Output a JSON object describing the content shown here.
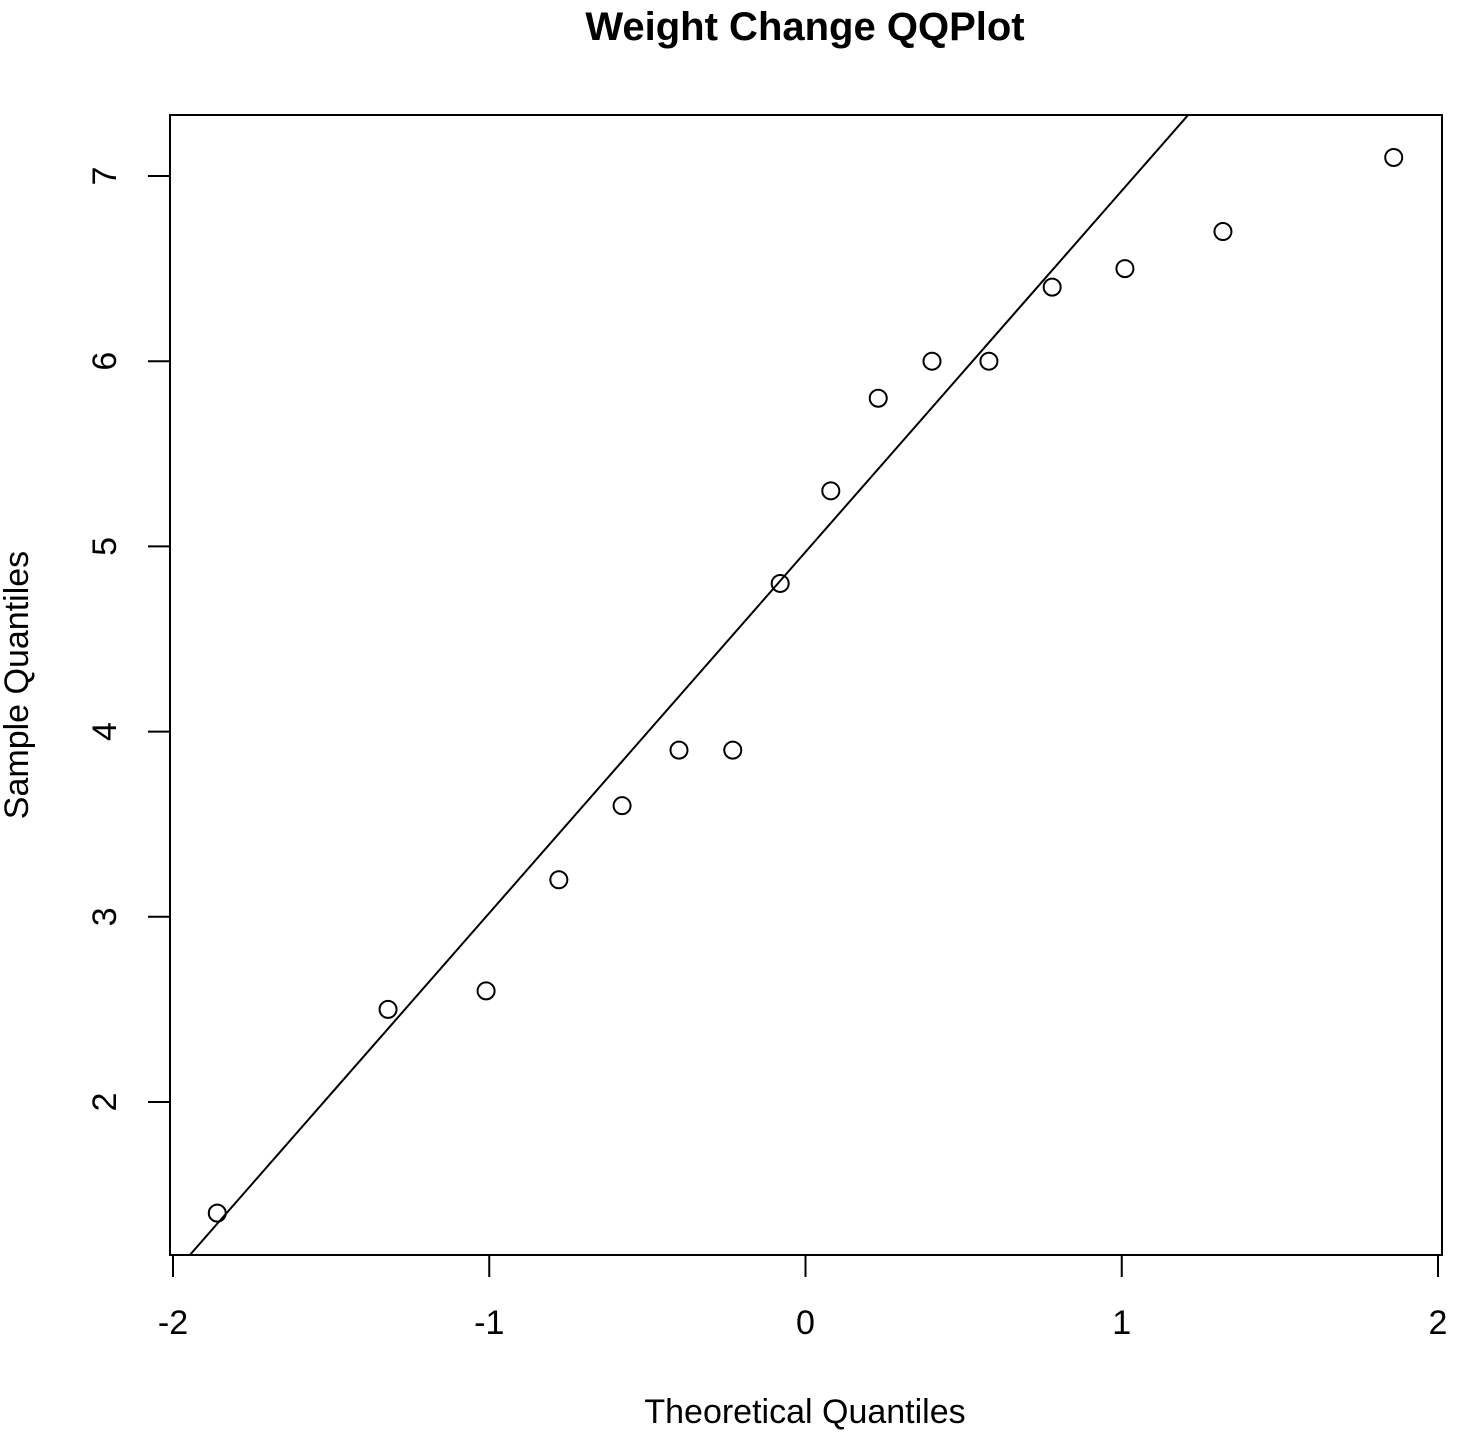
{
  "chart_data": {
    "type": "scatter",
    "title": "Weight Change QQPlot",
    "xlabel": "Theoretical Quantiles",
    "ylabel": "Sample Quantiles",
    "xlim": [
      -2,
      2
    ],
    "ylim": [
      1.2,
      7.35
    ],
    "x_ticks": [
      -2,
      -1,
      0,
      1,
      2
    ],
    "x_tick_labels": [
      "-2",
      "-1",
      "0",
      "1",
      "2"
    ],
    "y_ticks": [
      2,
      3,
      4,
      5,
      6,
      7
    ],
    "y_tick_labels": [
      "2",
      "3",
      "4",
      "5",
      "6",
      "7"
    ],
    "grid": false,
    "legend": "none",
    "marker": "open-circle",
    "x": [
      -1.86,
      -1.32,
      -1.01,
      -0.78,
      -0.58,
      -0.4,
      -0.23,
      -0.08,
      0.08,
      0.23,
      0.4,
      0.58,
      0.78,
      1.01,
      1.32,
      1.86
    ],
    "y": [
      1.4,
      2.5,
      2.6,
      3.2,
      3.6,
      3.9,
      3.9,
      4.8,
      5.3,
      5.8,
      6.0,
      6.0,
      6.4,
      6.5,
      6.7,
      7.1
    ],
    "reference_line": {
      "intercept": 4.97,
      "slope": 1.95
    },
    "colors": {
      "foreground": "#000000",
      "background": "#ffffff"
    }
  }
}
